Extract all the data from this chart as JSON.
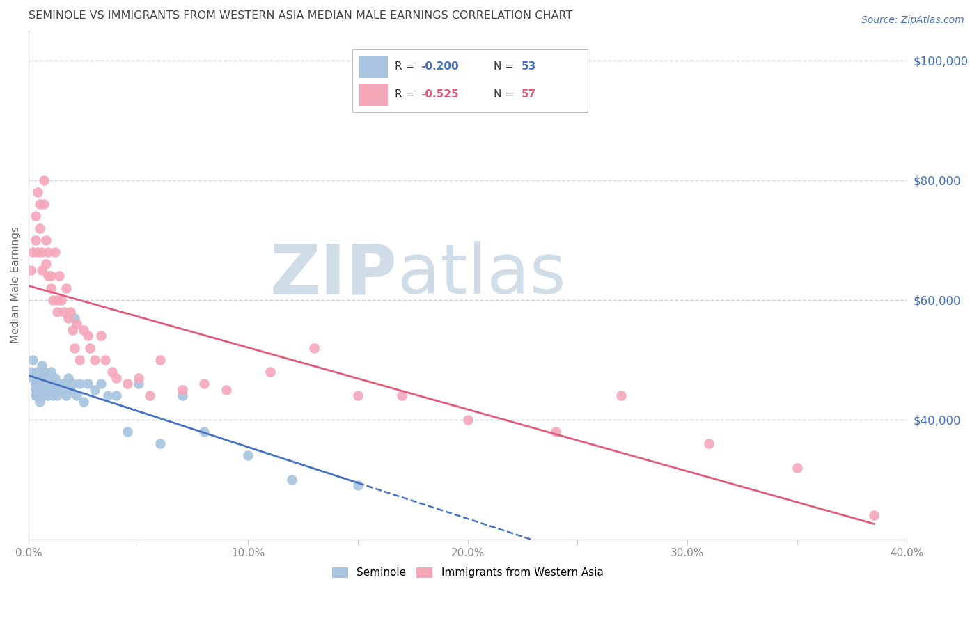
{
  "title": "SEMINOLE VS IMMIGRANTS FROM WESTERN ASIA MEDIAN MALE EARNINGS CORRELATION CHART",
  "source": "Source: ZipAtlas.com",
  "ylabel": "Median Male Earnings",
  "xlim": [
    0.0,
    0.4
  ],
  "ylim": [
    20000,
    105000
  ],
  "xticks": [
    0.0,
    0.05,
    0.1,
    0.15,
    0.2,
    0.25,
    0.3,
    0.35,
    0.4
  ],
  "xticklabels": [
    "0.0%",
    "",
    "10.0%",
    "",
    "20.0%",
    "",
    "30.0%",
    "",
    "40.0%"
  ],
  "yticks_right": [
    40000,
    60000,
    80000,
    100000
  ],
  "ytick_labels_right": [
    "$40,000",
    "$60,000",
    "$80,000",
    "$100,000"
  ],
  "seminole_color": "#a8c4e0",
  "immigrants_color": "#f4a7b9",
  "trend_seminole_color": "#4472c4",
  "trend_immigrants_color": "#e05c7a",
  "background_color": "#ffffff",
  "grid_color": "#c8d4e8",
  "watermark_color": "#d0dce8",
  "title_color": "#444444",
  "source_color": "#4472c4",
  "axis_label_color": "#666666",
  "tick_color": "#888888",
  "seminole_x": [
    0.001,
    0.002,
    0.002,
    0.003,
    0.003,
    0.003,
    0.004,
    0.004,
    0.004,
    0.005,
    0.005,
    0.005,
    0.006,
    0.006,
    0.006,
    0.007,
    0.007,
    0.007,
    0.008,
    0.008,
    0.009,
    0.009,
    0.01,
    0.01,
    0.011,
    0.011,
    0.012,
    0.012,
    0.013,
    0.014,
    0.015,
    0.016,
    0.017,
    0.018,
    0.019,
    0.02,
    0.021,
    0.022,
    0.023,
    0.025,
    0.027,
    0.03,
    0.033,
    0.036,
    0.04,
    0.045,
    0.05,
    0.06,
    0.07,
    0.08,
    0.1,
    0.12,
    0.15
  ],
  "seminole_y": [
    48000,
    50000,
    47000,
    46000,
    45000,
    44000,
    48000,
    46000,
    44000,
    47000,
    45000,
    43000,
    49000,
    47000,
    45000,
    48000,
    46000,
    44000,
    47000,
    45000,
    46000,
    44000,
    48000,
    45000,
    46000,
    44000,
    47000,
    45000,
    44000,
    46000,
    45000,
    46000,
    44000,
    47000,
    45000,
    46000,
    57000,
    44000,
    46000,
    43000,
    46000,
    45000,
    46000,
    44000,
    44000,
    38000,
    46000,
    36000,
    44000,
    38000,
    34000,
    30000,
    29000
  ],
  "immigrants_x": [
    0.001,
    0.002,
    0.003,
    0.003,
    0.004,
    0.004,
    0.005,
    0.005,
    0.006,
    0.006,
    0.007,
    0.007,
    0.008,
    0.008,
    0.009,
    0.009,
    0.01,
    0.01,
    0.011,
    0.012,
    0.013,
    0.013,
    0.014,
    0.015,
    0.016,
    0.017,
    0.018,
    0.019,
    0.02,
    0.021,
    0.022,
    0.023,
    0.025,
    0.027,
    0.028,
    0.03,
    0.033,
    0.035,
    0.038,
    0.04,
    0.045,
    0.05,
    0.055,
    0.06,
    0.07,
    0.08,
    0.09,
    0.11,
    0.13,
    0.15,
    0.17,
    0.2,
    0.24,
    0.27,
    0.31,
    0.35,
    0.385
  ],
  "immigrants_y": [
    65000,
    68000,
    74000,
    70000,
    68000,
    78000,
    76000,
    72000,
    68000,
    65000,
    80000,
    76000,
    70000,
    66000,
    64000,
    68000,
    62000,
    64000,
    60000,
    68000,
    60000,
    58000,
    64000,
    60000,
    58000,
    62000,
    57000,
    58000,
    55000,
    52000,
    56000,
    50000,
    55000,
    54000,
    52000,
    50000,
    54000,
    50000,
    48000,
    47000,
    46000,
    47000,
    44000,
    50000,
    45000,
    46000,
    45000,
    48000,
    52000,
    44000,
    44000,
    40000,
    38000,
    44000,
    36000,
    32000,
    24000
  ]
}
